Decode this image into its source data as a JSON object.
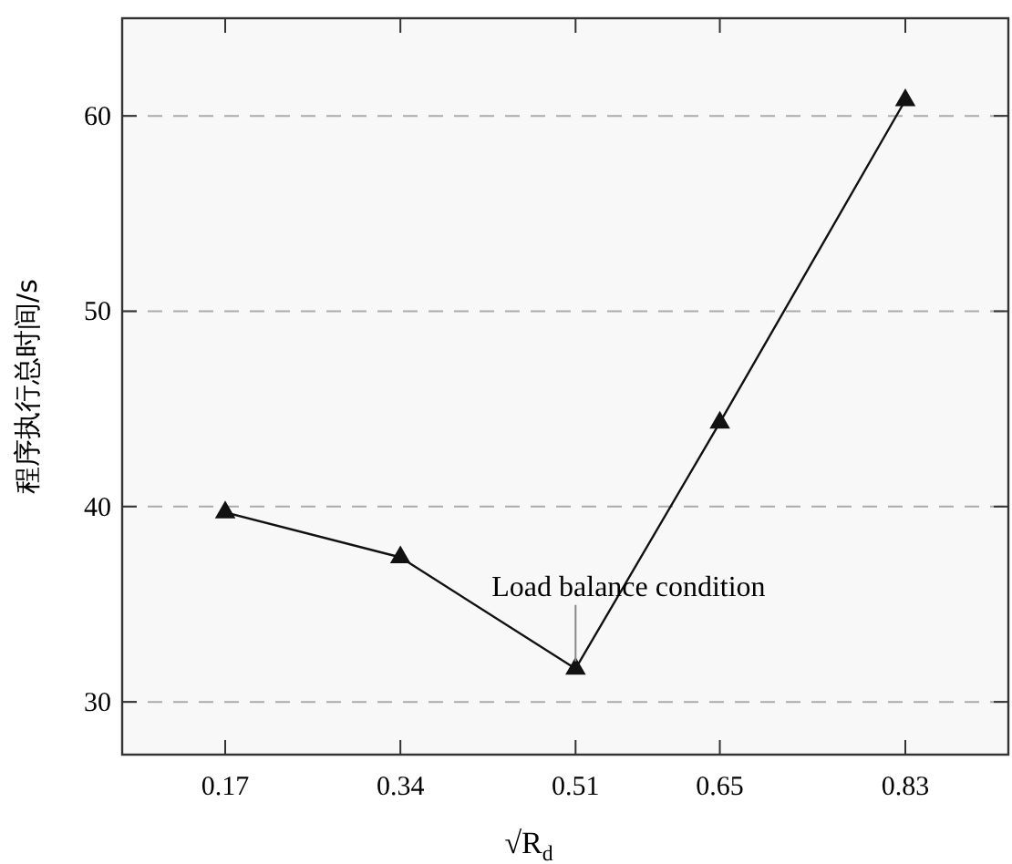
{
  "chart_data": {
    "type": "line",
    "xlabel": "√R$_{d}$",
    "ylabel": "程序执行总时间/s",
    "x": [
      0.17,
      0.34,
      0.51,
      0.65,
      0.83
    ],
    "series": [
      {
        "color": "#111111",
        "values": [
          39.7,
          37.4,
          31.7,
          44.3,
          60.8
        ]
      }
    ],
    "xlim": [
      0.07,
      0.93
    ],
    "xticks": [
      0.17,
      0.34,
      0.51,
      0.65,
      0.83
    ],
    "ylim": [
      27.3,
      65
    ],
    "yticks": [
      30,
      40,
      50,
      60
    ],
    "grid": "y",
    "marker": "triangle",
    "line_style": "solid",
    "annotations": [
      {
        "text": "Load balance condition",
        "x": 0.51,
        "y": 31.7
      }
    ]
  }
}
